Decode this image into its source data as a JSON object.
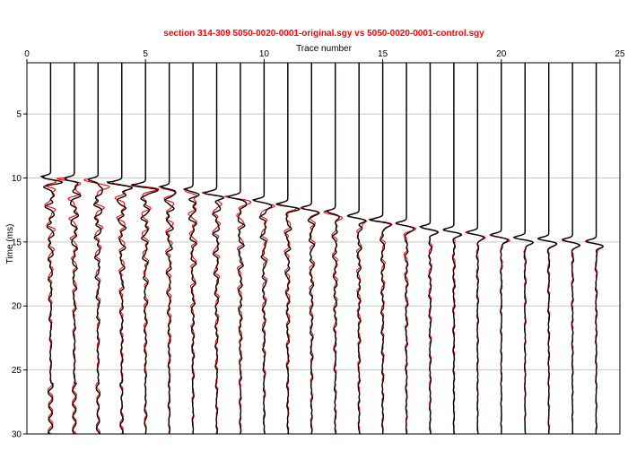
{
  "chart_data": {
    "type": "line",
    "title": "section 314-309  5050-0020-0001-original.sgy vs 5050-0020-0001-control.sgy",
    "xlabel": "Trace number",
    "ylabel": "Time (ms)",
    "x_ticks": [
      "0",
      "5",
      "10",
      "15",
      "20",
      "25"
    ],
    "y_ticks": [
      "5",
      "10",
      "15",
      "20",
      "25",
      "30"
    ],
    "xlim": [
      0,
      25
    ],
    "ylim": [
      1,
      30
    ],
    "y_inverted": true,
    "x_axis_position": "top",
    "grid": "horizontal",
    "traces": [
      1,
      2,
      3,
      4,
      5,
      6,
      7,
      8,
      9,
      10,
      11,
      12,
      13,
      14,
      15,
      16,
      17,
      18,
      19,
      20,
      21,
      22,
      23,
      24
    ],
    "first_break_ms": [
      9.9,
      10.0,
      10.1,
      10.3,
      10.5,
      10.7,
      10.9,
      11.1,
      11.4,
      11.7,
      12.0,
      12.3,
      12.6,
      12.9,
      13.2,
      13.5,
      13.8,
      14.0,
      14.2,
      14.4,
      14.6,
      14.7,
      14.8,
      14.9
    ],
    "series": [
      {
        "name": "5050-0020-0001-original.sgy",
        "color": "#ff0000"
      },
      {
        "name": "5050-0020-0001-control.sgy",
        "color": "#000000"
      }
    ]
  },
  "colors": {
    "title": "#ff0000",
    "axis": "#000000",
    "grid": "#c8c8c8",
    "original": "#ff0000",
    "control": "#000000"
  }
}
